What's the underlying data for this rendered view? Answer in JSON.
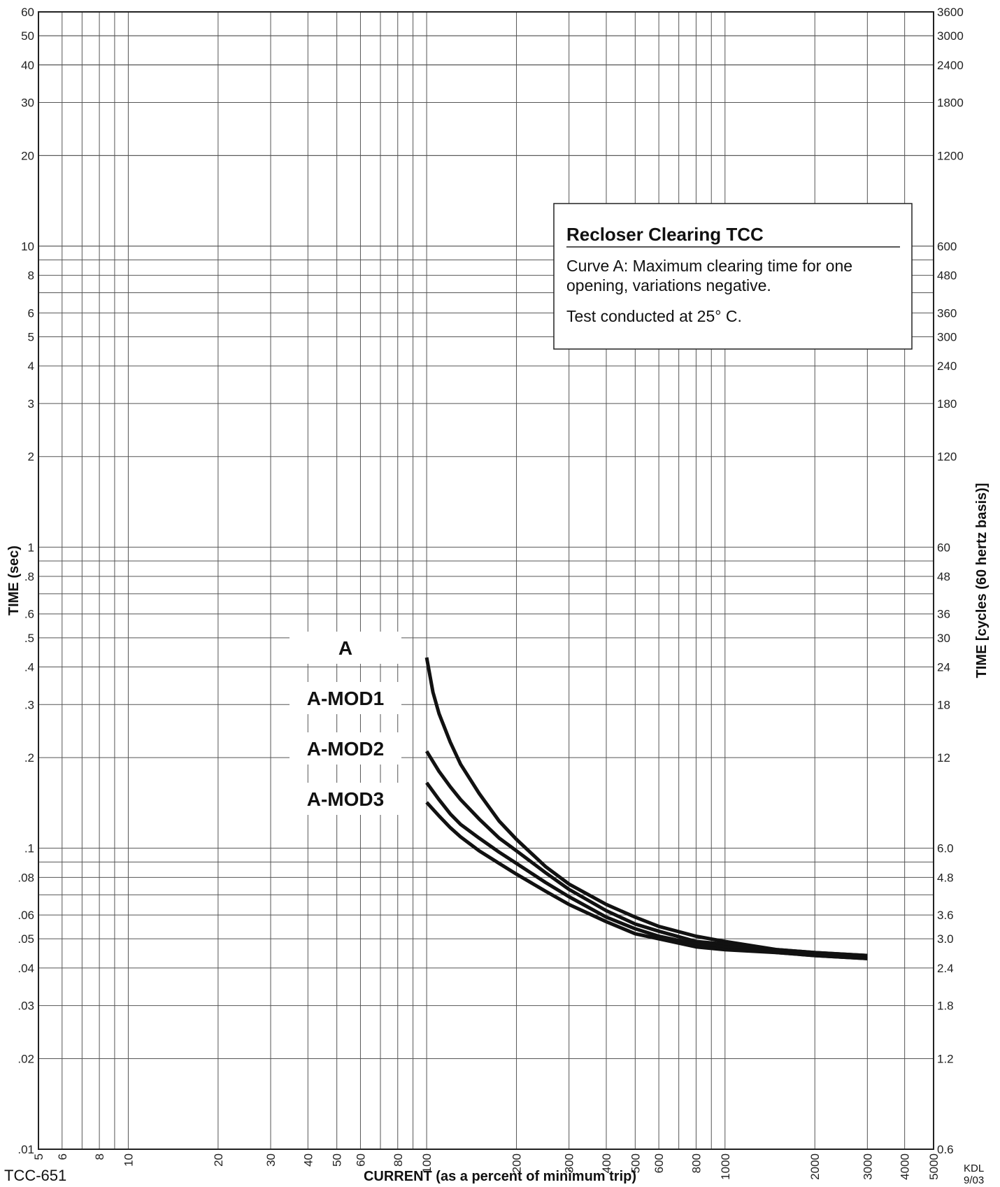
{
  "chart_data": {
    "type": "line",
    "title": "Recloser Clearing TCC",
    "xlabel": "CURRENT (as a percent of minimum trip)",
    "ylabel": "TIME (sec)",
    "ylabel_right": "TIME [cycles (60 hertz basis)]",
    "x_scale": "log",
    "y_scale": "log",
    "xlim": [
      5,
      5000
    ],
    "ylim": [
      0.01,
      60
    ],
    "grid": true,
    "x_ticks": [
      "5",
      "6",
      "8",
      "10",
      "20",
      "30",
      "40",
      "50",
      "60",
      "80",
      "100",
      "200",
      "300",
      "400",
      "500",
      "600",
      "800",
      "1000",
      "2000",
      "3000",
      "4000",
      "5000"
    ],
    "y_ticks_left": [
      "60",
      "50",
      "40",
      "30",
      "20",
      "10",
      "8",
      "6",
      "5",
      "4",
      "3",
      "2",
      "1",
      ".8",
      ".6",
      ".5",
      ".4",
      ".3",
      ".2",
      ".1",
      ".08",
      ".06",
      ".05",
      ".04",
      ".03",
      ".02",
      ".01"
    ],
    "y_ticks_right": [
      "3600",
      "3000",
      "2400",
      "1800",
      "1200",
      "600",
      "480",
      "360",
      "300",
      "240",
      "180",
      "120",
      "60",
      "48",
      "36",
      "30",
      "24",
      "18",
      "12",
      "6.0",
      "4.8",
      "3.6",
      "3.0",
      "2.4",
      "1.8",
      "1.2",
      "0.6"
    ],
    "legend": {
      "title": "Recloser Clearing TCC",
      "lines": [
        "Curve A: Maximum clearing time for one",
        "opening, variations negative.",
        "Test conducted at 25° C."
      ]
    },
    "series": [
      {
        "name": "A",
        "x": [
          100,
          105,
          110,
          120,
          130,
          150,
          175,
          200,
          250,
          300,
          400,
          500,
          600,
          800,
          1000,
          1500,
          2000,
          3000
        ],
        "y": [
          0.43,
          0.33,
          0.28,
          0.225,
          0.19,
          0.152,
          0.123,
          0.107,
          0.087,
          0.076,
          0.065,
          0.059,
          0.055,
          0.051,
          0.049,
          0.046,
          0.045,
          0.044
        ]
      },
      {
        "name": "A-MOD1",
        "x": [
          100,
          110,
          120,
          130,
          150,
          175,
          200,
          250,
          300,
          400,
          500,
          600,
          800,
          1000,
          1500,
          2000,
          3000
        ],
        "y": [
          0.21,
          0.18,
          0.16,
          0.145,
          0.125,
          0.108,
          0.098,
          0.083,
          0.073,
          0.062,
          0.056,
          0.053,
          0.049,
          0.048,
          0.046,
          0.045,
          0.044
        ]
      },
      {
        "name": "A-MOD2",
        "x": [
          100,
          110,
          120,
          130,
          150,
          175,
          200,
          250,
          300,
          400,
          500,
          600,
          800,
          1000,
          1500,
          2000,
          3000
        ],
        "y": [
          0.165,
          0.145,
          0.13,
          0.12,
          0.108,
          0.097,
          0.089,
          0.077,
          0.069,
          0.059,
          0.054,
          0.051,
          0.048,
          0.047,
          0.045,
          0.044,
          0.043
        ]
      },
      {
        "name": "A-MOD3",
        "x": [
          100,
          110,
          120,
          130,
          150,
          175,
          200,
          250,
          300,
          400,
          500,
          600,
          800,
          1000,
          1500,
          2000,
          3000
        ],
        "y": [
          0.142,
          0.128,
          0.117,
          0.109,
          0.098,
          0.089,
          0.082,
          0.072,
          0.065,
          0.057,
          0.052,
          0.05,
          0.047,
          0.046,
          0.045,
          0.044,
          0.043
        ]
      }
    ]
  },
  "footer": {
    "doc_id": "TCC-651",
    "author": "KDL",
    "date": "9/03"
  }
}
